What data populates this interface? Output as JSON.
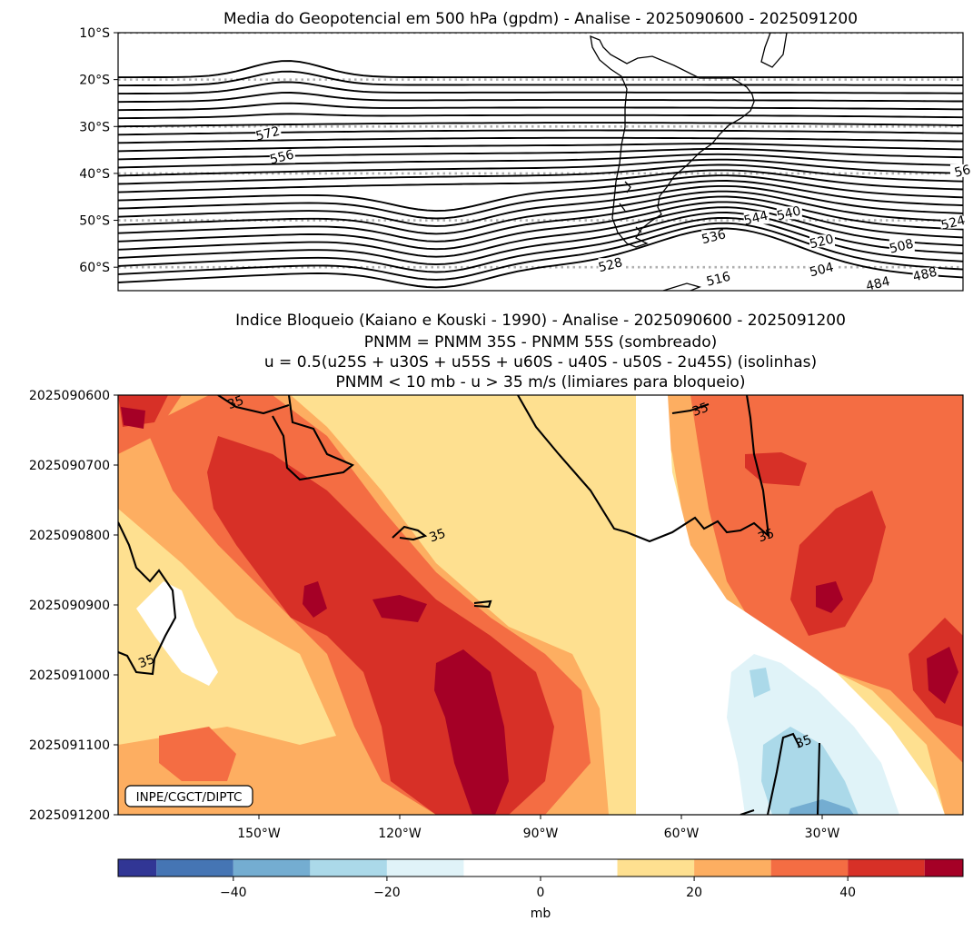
{
  "chart_data": [
    {
      "type": "contour",
      "title": "Media do Geopotencial em 500 hPa (gpdm) - Analise - 2025090600 - 2025091200",
      "y_ticks": [
        "10°S",
        "20°S",
        "30°S",
        "40°S",
        "50°S",
        "60°S"
      ],
      "y_values": [
        -10,
        -20,
        -30,
        -40,
        -50,
        -60
      ],
      "ylim": [
        -65,
        -10
      ],
      "grid": "dotted-latitude-lines",
      "contour_labels": [
        {
          "text": "572",
          "lon": -148,
          "lat": -32
        },
        {
          "text": "556",
          "lon": -145,
          "lat": -37
        },
        {
          "text": "56",
          "lon": 0,
          "lat": -40
        },
        {
          "text": "544",
          "lon": -44,
          "lat": -50
        },
        {
          "text": "540",
          "lon": -37,
          "lat": -49
        },
        {
          "text": "524",
          "lon": -2,
          "lat": -51
        },
        {
          "text": "536",
          "lon": -53,
          "lat": -54
        },
        {
          "text": "520",
          "lon": -30,
          "lat": -55
        },
        {
          "text": "508",
          "lon": -13,
          "lat": -56
        },
        {
          "text": "528",
          "lon": -75,
          "lat": -60
        },
        {
          "text": "516",
          "lon": -52,
          "lat": -63
        },
        {
          "text": "504",
          "lon": -30,
          "lat": -61
        },
        {
          "text": "488",
          "lon": -8,
          "lat": -62
        },
        {
          "text": "484",
          "lon": -18,
          "lat": -64
        }
      ]
    },
    {
      "type": "heatmap",
      "title_lines": [
        "Indice Bloqueio (Kaiano e Kouski - 1990) - Analise - 2025090600 - 2025091200",
        "PNMM = PNMM 35S - PNMM 55S (sombreado)",
        "u = 0.5(u25S + u30S + u55S + u60S - u40S - u50S - 2u45S) (isolinhas)",
        "PNMM < 10 mb - u > 35 m/s (limiares para bloqueio)"
      ],
      "y_ticks": [
        "2025090600",
        "2025090700",
        "2025090800",
        "2025090900",
        "2025091000",
        "2025091100",
        "2025091200"
      ],
      "x_ticks": [
        "150°W",
        "120°W",
        "90°W",
        "60°W",
        "30°W"
      ],
      "x_values": [
        -150,
        -120,
        -90,
        -60,
        -30
      ],
      "xlim": [
        -180,
        0
      ],
      "contour_labels": [
        {
          "text": "35",
          "lon": -155,
          "time_day": 0.1
        },
        {
          "text": "35",
          "lon": -56,
          "time_day": 0.2
        },
        {
          "text": "35",
          "lon": -112,
          "time_day": 2.0
        },
        {
          "text": "35",
          "lon": -42,
          "time_day": 2.0
        },
        {
          "text": "35",
          "lon": -174,
          "time_day": 3.8
        },
        {
          "text": "35",
          "lon": -34,
          "time_day": 4.95
        }
      ],
      "annotation": "INPE/CGCT/DIPTC",
      "colorbar": {
        "label": "mb",
        "tick_labels": [
          "−40",
          "−20",
          "0",
          "20",
          "40"
        ],
        "tick_values": [
          -40,
          -20,
          0,
          20,
          40
        ],
        "range": [
          -55,
          55
        ],
        "bins": [
          {
            "from": -55,
            "to": -50,
            "color": "#313695"
          },
          {
            "from": -50,
            "to": -40,
            "color": "#4575b4"
          },
          {
            "from": -40,
            "to": -30,
            "color": "#74add1"
          },
          {
            "from": -30,
            "to": -20,
            "color": "#abd9e9"
          },
          {
            "from": -20,
            "to": -10,
            "color": "#e0f3f8"
          },
          {
            "from": -10,
            "to": 10,
            "color": "#ffffff"
          },
          {
            "from": 10,
            "to": 20,
            "color": "#fee090"
          },
          {
            "from": 20,
            "to": 30,
            "color": "#fdae61"
          },
          {
            "from": 30,
            "to": 40,
            "color": "#f46d43"
          },
          {
            "from": 40,
            "to": 50,
            "color": "#d73027"
          },
          {
            "from": 50,
            "to": 55,
            "color": "#a50026"
          }
        ]
      }
    }
  ]
}
